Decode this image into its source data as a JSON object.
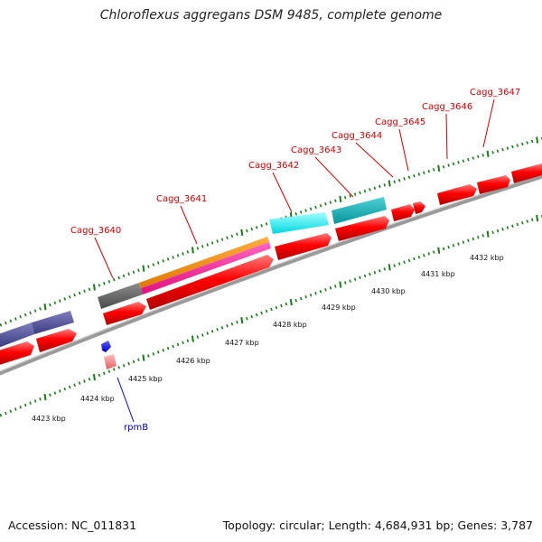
{
  "title": "Chloroflexus aggregans DSM 9485, complete genome",
  "footer": {
    "accession": "Accession: NC_011831",
    "stats": "Topology: circular; Length: 4,684,931 bp; Genes: 3,787"
  },
  "colors": {
    "cds": "#ff0000",
    "rna": "#0000ff",
    "backbone": "#999999",
    "tick": "#1a7a1a",
    "label_line": "#d00000"
  },
  "gene_labels": [
    "Cagg_3640",
    "Cagg_3641",
    "Cagg_3642",
    "Cagg_3643",
    "Cagg_3644",
    "Cagg_3645",
    "Cagg_3646",
    "Cagg_3647"
  ],
  "rna_labels": [
    "rpmB"
  ],
  "scale_labels": [
    "4423 kbp",
    "4424 kbp",
    "4425 kbp",
    "4426 kbp",
    "4427 kbp",
    "4428 kbp",
    "4429 kbp",
    "4430 kbp",
    "4431 kbp",
    "4432 kbp"
  ]
}
